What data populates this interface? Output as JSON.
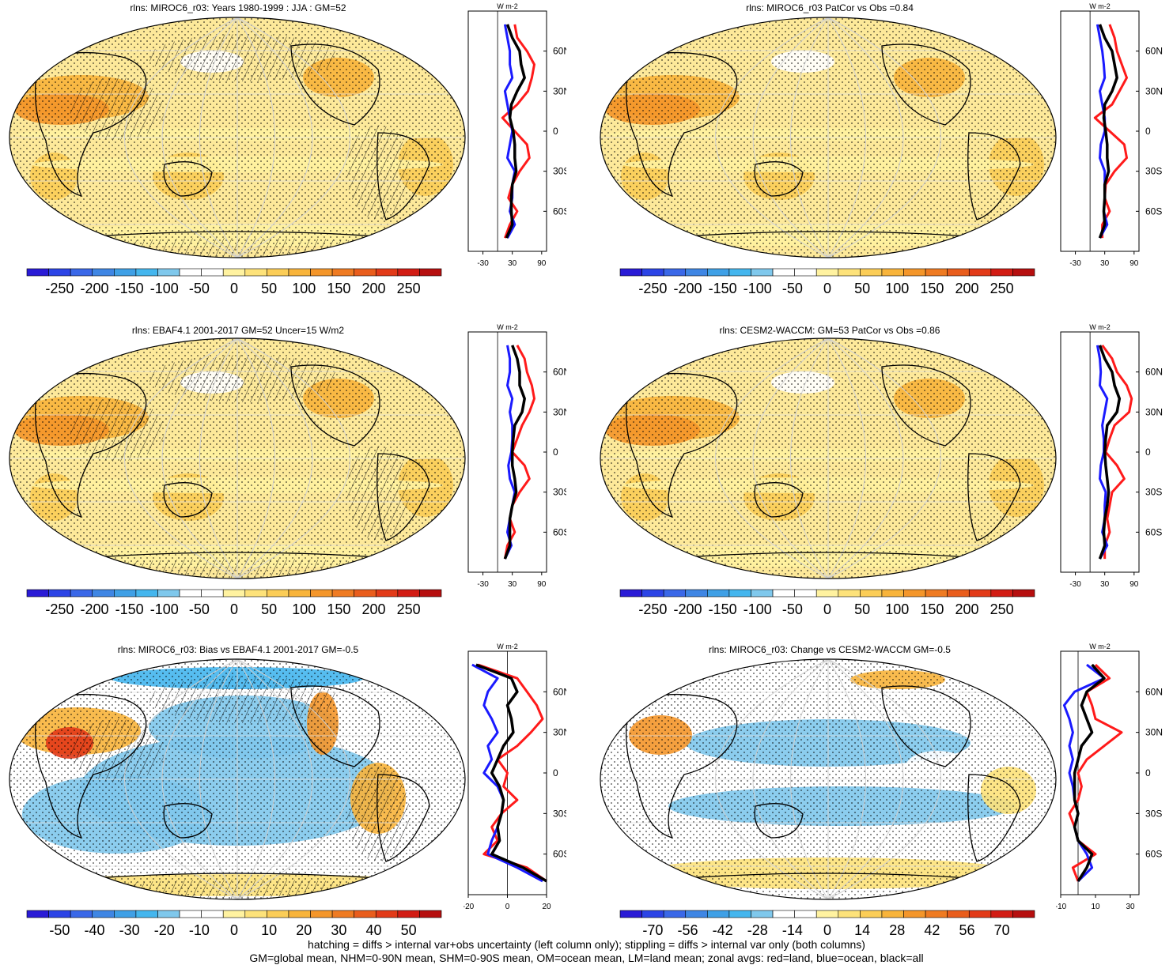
{
  "footer": {
    "line1": "hatching = diffs > internal var+obs uncertainty (left column only); stippling = diffs > internal var only (both columns)",
    "line2": "GM=global mean, NHM=0-90N mean, SHM=0-90S mean, OM=ocean mean, LM=land mean; zonal avgs: red=land, blue=ocean, black=all"
  },
  "chart_data": [
    {
      "id": "p1",
      "type": "map",
      "title": "rlns: MIROC6_r03: Years 1980-1999 : JJA : GM=52",
      "hatching": true,
      "colorbar": {
        "labels": [
          "-250",
          "-200",
          "-150",
          "-100",
          "-50",
          "0",
          "50",
          "100",
          "150",
          "200",
          "250"
        ],
        "range": [
          -275,
          275
        ]
      },
      "zonal": {
        "unit": "W m-2",
        "xticks": [
          "-30",
          "30",
          "90"
        ],
        "xlim": [
          -60,
          100
        ],
        "lat_ticks": [
          "60N",
          "30N",
          "0",
          "30S",
          "60S"
        ],
        "lat": [
          80,
          70,
          60,
          50,
          40,
          30,
          20,
          10,
          0,
          -10,
          -20,
          -30,
          -40,
          -50,
          -60,
          -70,
          -80
        ],
        "land": [
          35,
          40,
          60,
          75,
          70,
          62,
          40,
          10,
          35,
          60,
          65,
          45,
          30,
          22,
          40,
          25,
          15
        ],
        "ocean": [
          15,
          20,
          25,
          25,
          30,
          15,
          20,
          25,
          30,
          25,
          20,
          35,
          30,
          30,
          25,
          35,
          20
        ],
        "all": [
          20,
          30,
          45,
          48,
          55,
          40,
          28,
          25,
          32,
          35,
          35,
          38,
          30,
          28,
          28,
          30,
          18
        ]
      }
    },
    {
      "id": "p2",
      "type": "map",
      "title": "rlns: MIROC6_r03 PatCor vs Obs =0.84",
      "hatching": false,
      "colorbar": {
        "labels": [
          "-250",
          "-200",
          "-150",
          "-100",
          "-50",
          "0",
          "50",
          "100",
          "150",
          "200",
          "250"
        ],
        "range": [
          -275,
          275
        ]
      },
      "zonal": {
        "unit": "W m-2",
        "xticks": [
          "-30",
          "30",
          "90"
        ],
        "xlim": [
          -60,
          100
        ],
        "lat_ticks": [
          "60N",
          "30N",
          "0",
          "30S",
          "60S"
        ],
        "lat": [
          80,
          70,
          60,
          50,
          40,
          30,
          20,
          10,
          0,
          -10,
          -20,
          -30,
          -40,
          -50,
          -60,
          -70,
          -80
        ],
        "land": [
          40,
          50,
          55,
          65,
          75,
          60,
          45,
          10,
          40,
          70,
          75,
          50,
          32,
          30,
          40,
          25,
          25
        ],
        "ocean": [
          15,
          20,
          25,
          28,
          30,
          20,
          25,
          30,
          30,
          22,
          20,
          30,
          30,
          30,
          28,
          35,
          20
        ],
        "all": [
          20,
          30,
          45,
          50,
          55,
          45,
          30,
          28,
          32,
          35,
          35,
          38,
          30,
          30,
          28,
          30,
          20
        ]
      }
    },
    {
      "id": "p3",
      "type": "map",
      "title": "rlns: EBAF4.1 2001-2017 GM=52 Uncer=15 W/m2",
      "hatching": true,
      "colorbar": {
        "labels": [
          "-250",
          "-200",
          "-150",
          "-100",
          "-50",
          "0",
          "50",
          "100",
          "150",
          "200",
          "250"
        ],
        "range": [
          -275,
          275
        ]
      },
      "zonal": {
        "unit": "W m-2",
        "xticks": [
          "-30",
          "30",
          "90"
        ],
        "xlim": [
          -60,
          100
        ],
        "lat_ticks": [
          "60N",
          "30N",
          "0",
          "30S",
          "60S"
        ],
        "lat": [
          80,
          70,
          60,
          50,
          40,
          30,
          20,
          10,
          0,
          -10,
          -20,
          -30,
          -40,
          -50,
          -60,
          -70,
          -80
        ],
        "land": [
          40,
          55,
          60,
          70,
          75,
          65,
          50,
          40,
          30,
          55,
          65,
          45,
          30,
          25,
          35,
          20,
          15
        ],
        "ocean": [
          20,
          25,
          25,
          20,
          30,
          25,
          30,
          30,
          28,
          22,
          25,
          35,
          30,
          25,
          20,
          28,
          15
        ],
        "all": [
          30,
          40,
          45,
          45,
          55,
          50,
          35,
          32,
          30,
          30,
          35,
          38,
          30,
          25,
          25,
          25,
          15
        ]
      }
    },
    {
      "id": "p4",
      "type": "map",
      "title": "rlns: CESM2-WACCM: GM=53 PatCor vs Obs =0.86",
      "hatching": false,
      "colorbar": {
        "labels": [
          "-250",
          "-200",
          "-150",
          "-100",
          "-50",
          "0",
          "50",
          "100",
          "150",
          "200",
          "250"
        ],
        "range": [
          -275,
          275
        ]
      },
      "zonal": {
        "unit": "W m-2",
        "xticks": [
          "-30",
          "30",
          "90"
        ],
        "xlim": [
          -60,
          100
        ],
        "lat_ticks": [
          "60N",
          "30N",
          "0",
          "30S",
          "60S"
        ],
        "lat": [
          80,
          70,
          60,
          50,
          40,
          30,
          20,
          10,
          0,
          -10,
          -20,
          -30,
          -40,
          -50,
          -60,
          -70,
          -80
        ],
        "land": [
          25,
          45,
          55,
          75,
          85,
          80,
          50,
          40,
          32,
          55,
          70,
          45,
          40,
          35,
          40,
          30,
          30
        ],
        "ocean": [
          15,
          20,
          22,
          20,
          35,
          30,
          25,
          28,
          28,
          22,
          20,
          32,
          30,
          30,
          25,
          35,
          20
        ],
        "all": [
          20,
          30,
          45,
          50,
          60,
          55,
          35,
          32,
          30,
          32,
          35,
          38,
          35,
          30,
          28,
          30,
          20
        ]
      }
    },
    {
      "id": "p5",
      "type": "map",
      "title": "rlns: MIROC6_r03: Bias vs EBAF4.1 2001-2017 GM=-0.5",
      "hatching": true,
      "colorbar": {
        "labels": [
          "-50",
          "-40",
          "-30",
          "-20",
          "-10",
          "0",
          "10",
          "20",
          "30",
          "40",
          "50"
        ],
        "range": [
          -55,
          55
        ]
      },
      "zonal": {
        "unit": "W m-2",
        "xticks": [
          "-20",
          "0",
          "20"
        ],
        "xlim": [
          -20,
          20
        ],
        "lat_ticks": [
          "60N",
          "30N",
          "0",
          "30S",
          "60S"
        ],
        "lat": [
          80,
          70,
          60,
          50,
          40,
          30,
          20,
          10,
          0,
          -10,
          -20,
          -30,
          -40,
          -50,
          -60,
          -70,
          -80
        ],
        "land": [
          -15,
          5,
          10,
          15,
          18,
          12,
          5,
          -5,
          0,
          -2,
          5,
          -3,
          -8,
          -5,
          -12,
          10,
          20
        ],
        "ocean": [
          -18,
          -5,
          -10,
          -12,
          -8,
          -5,
          -10,
          -8,
          -12,
          -5,
          -2,
          -3,
          -5,
          -8,
          -10,
          5,
          18
        ],
        "all": [
          -16,
          2,
          5,
          0,
          2,
          3,
          -2,
          -5,
          -8,
          -4,
          -2,
          -3,
          -5,
          -4,
          -8,
          8,
          20
        ]
      }
    },
    {
      "id": "p6",
      "type": "map",
      "title": "rlns: MIROC6_r03: Change vs CESM2-WACCM GM=-0.5",
      "hatching": false,
      "colorbar": {
        "labels": [
          "-70",
          "-56",
          "-42",
          "-28",
          "-14",
          "0",
          "14",
          "28",
          "42",
          "56",
          "70"
        ],
        "range": [
          -77,
          77
        ]
      },
      "zonal": {
        "unit": "W m-2",
        "xticks": [
          "-10",
          "10",
          "30"
        ],
        "xlim": [
          -10,
          35
        ],
        "lat_ticks": [
          "60N",
          "30N",
          "0",
          "30S",
          "60S"
        ],
        "lat": [
          80,
          70,
          60,
          50,
          40,
          30,
          20,
          10,
          0,
          -10,
          -20,
          -30,
          -40,
          -50,
          -60,
          -70,
          -80
        ],
        "land": [
          10,
          18,
          5,
          8,
          10,
          25,
          15,
          5,
          0,
          2,
          0,
          -5,
          -2,
          0,
          10,
          -3,
          0
        ],
        "ocean": [
          5,
          15,
          -2,
          -8,
          -5,
          -3,
          -5,
          -3,
          -5,
          -3,
          -2,
          0,
          -2,
          0,
          5,
          8,
          0
        ],
        "all": [
          8,
          15,
          5,
          2,
          5,
          8,
          2,
          0,
          -2,
          -2,
          -2,
          0,
          -2,
          0,
          8,
          5,
          0
        ]
      }
    }
  ]
}
